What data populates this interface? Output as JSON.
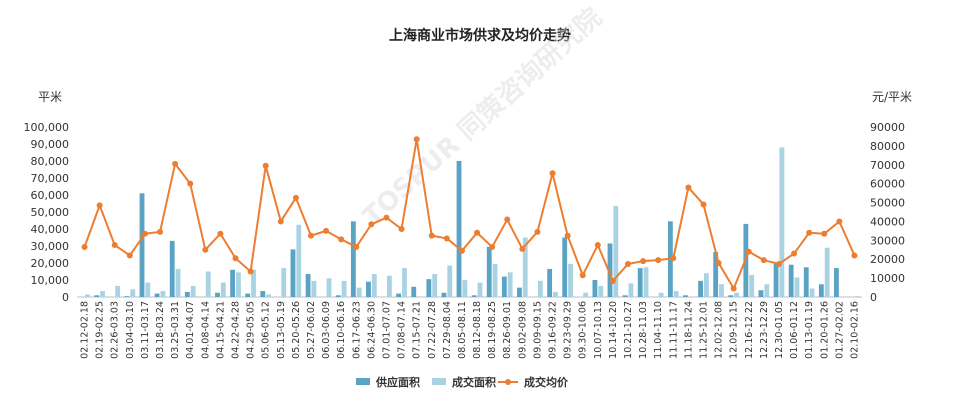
{
  "chart_data": {
    "type": "bar+line",
    "title": "上海商业市场供求及均价走势",
    "left_unit": "平米",
    "right_unit": "元/平米",
    "watermark": "TOSPUR 同策咨询研究院",
    "y_left": {
      "min": 0,
      "max": 100000,
      "step": 10000,
      "ticks": [
        "0",
        "10,000",
        "20,000",
        "30,000",
        "40,000",
        "50,000",
        "60,000",
        "70,000",
        "80,000",
        "90,000",
        "100,000"
      ]
    },
    "y_right": {
      "min": 0,
      "max": 90000,
      "step": 10000,
      "ticks": [
        "0",
        "10000",
        "20000",
        "30000",
        "40000",
        "50000",
        "60000",
        "70000",
        "80000",
        "90000"
      ]
    },
    "categories": [
      "02.12-02.18",
      "02.19-02.25",
      "02.26-03.03",
      "03.04-03.10",
      "03.11-03.17",
      "03.18-03.24",
      "03.25-03.31",
      "04.01-04.07",
      "04.08-04.14",
      "04.15-04.21",
      "04.22-04.28",
      "04.29-05.05",
      "05.06-05.12",
      "05.13-05.19",
      "05.20-05.26",
      "05.27-06.02",
      "06.03-06.09",
      "06.10-06.16",
      "06.17-06.23",
      "06.24-06.30",
      "07.01-07.07",
      "07.08-07.14",
      "07.15-07.21",
      "07.22-07.28",
      "07.29-08.04",
      "08.05-08.11",
      "08.12-08.18",
      "08.19-08.25",
      "08.26-09.01",
      "09.02-09.08",
      "09.09-09.15",
      "09.16-09.22",
      "09.23-09.29",
      "09.30-10.06",
      "10.07-10.13",
      "10.14-10.20",
      "10.21-10.27",
      "10.28-11.03",
      "11.04-11.10",
      "11.11-11.17",
      "11.18-11.24",
      "11.25-12.01",
      "12.02-12.08",
      "12.09-12.15",
      "12.16-12.22",
      "12.23-12.29",
      "12.30-01.05",
      "01.06-01.12",
      "01.13-01.19",
      "01.20-01.26",
      "01.27-02.02",
      "02.10-02.16"
    ],
    "series": [
      {
        "name": "供应面积",
        "type": "bar",
        "axis": "left",
        "color": "#5ba3c4",
        "values": [
          0,
          1000,
          0,
          500,
          61000,
          2000,
          33000,
          3000,
          0,
          2500,
          16000,
          2000,
          3500,
          0,
          28000,
          13500,
          0,
          1000,
          44500,
          9000,
          0,
          2000,
          6000,
          10500,
          2500,
          80000,
          1000,
          29500,
          12000,
          5500,
          0,
          16500,
          35000,
          0,
          10000,
          31500,
          1000,
          17000,
          0,
          44500,
          1000,
          9500,
          26500,
          1000,
          43000,
          4000,
          19500,
          19000,
          17500,
          7500,
          17000,
          0
        ],
        "errors": [
          0,
          0,
          0,
          0,
          0,
          0,
          0,
          0,
          0,
          0,
          0,
          0,
          0,
          0,
          0,
          0,
          0,
          0,
          0,
          0,
          0,
          0,
          0,
          0,
          0,
          0,
          0,
          0,
          0,
          0,
          0,
          0,
          0,
          0,
          0,
          0,
          0,
          0,
          0,
          0,
          0,
          0,
          0,
          0,
          0,
          0,
          0,
          0,
          0,
          0,
          0,
          0
        ]
      },
      {
        "name": "成交面积",
        "type": "bar",
        "axis": "left",
        "color": "#a9d3e3",
        "values": [
          1500,
          3500,
          6500,
          4500,
          8500,
          3500,
          16500,
          6500,
          15000,
          8500,
          14500,
          16000,
          1500,
          17000,
          42500,
          9500,
          11000,
          9500,
          5500,
          13500,
          12500,
          17000,
          0,
          13500,
          18500,
          10000,
          8500,
          19500,
          14500,
          35000,
          9500,
          3000,
          19500,
          2500,
          6500,
          53500,
          8000,
          17500,
          2500,
          3500,
          0,
          14000,
          7500,
          2500,
          13000,
          7500,
          88000,
          11500,
          5000,
          29000,
          0,
          500
        ]
      },
      {
        "name": "成交均价",
        "type": "line",
        "axis": "right",
        "color": "#ed7d31",
        "values": [
          26500,
          48500,
          27500,
          22000,
          33500,
          34500,
          70500,
          60000,
          25000,
          33500,
          20500,
          13500,
          69500,
          40000,
          52500,
          32500,
          35000,
          30500,
          26500,
          38500,
          42000,
          36000,
          83500,
          32500,
          31000,
          24500,
          34000,
          26500,
          41000,
          25500,
          34500,
          65500,
          32500,
          11500,
          27500,
          8500,
          17500,
          19000,
          19500,
          20500,
          58000,
          49000,
          18000,
          4500,
          24000,
          19500,
          17500,
          23000,
          34000,
          33500,
          40000,
          22000
        ]
      }
    ],
    "legend": [
      "供应面积",
      "成交面积",
      "成交均价"
    ],
    "legend_position": "bottom"
  }
}
